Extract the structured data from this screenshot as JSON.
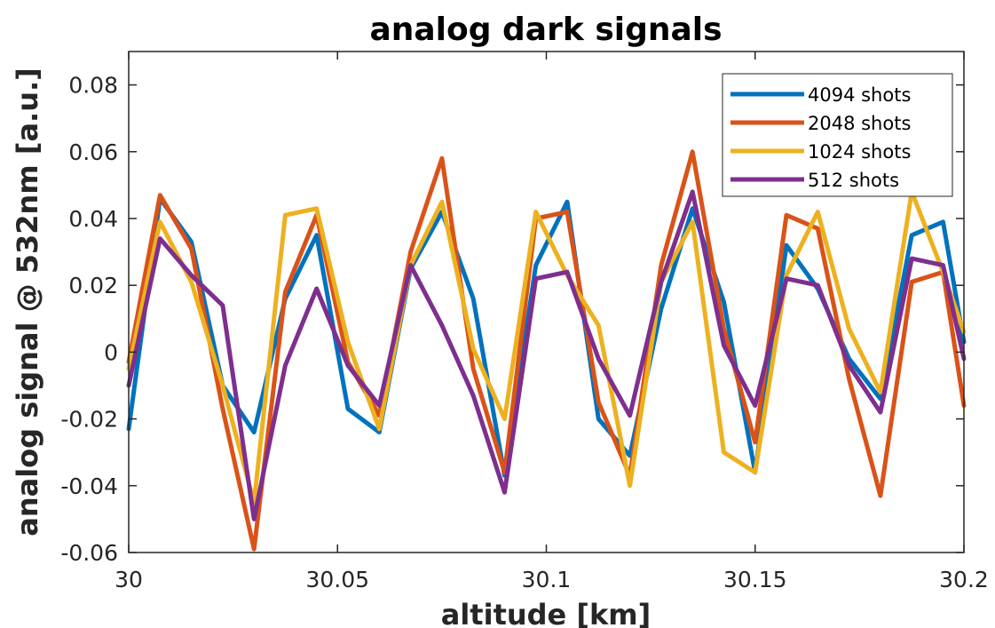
{
  "chart_data": {
    "type": "line",
    "title": "analog dark signals",
    "xlabel": "altitude [km]",
    "ylabel": "analog signal @ 532nm [a.u.]",
    "xlim": [
      30,
      30.2
    ],
    "ylim": [
      -0.06,
      0.09
    ],
    "xticks": [
      30,
      30.05,
      30.1,
      30.15,
      30.2
    ],
    "xtick_labels": [
      "30",
      "30.05",
      "30.1",
      "30.15",
      "30.2"
    ],
    "yticks": [
      -0.06,
      -0.04,
      -0.02,
      0,
      0.02,
      0.04,
      0.06,
      0.08
    ],
    "ytick_labels": [
      "-0.06",
      "-0.04",
      "-0.02",
      "0",
      "0.02",
      "0.04",
      "0.06",
      "0.08"
    ],
    "grid": false,
    "legend_position": "top-right",
    "x": [
      30.0,
      30.0075,
      30.015,
      30.0225,
      30.03,
      30.0375,
      30.045,
      30.0525,
      30.06,
      30.0675,
      30.075,
      30.0825,
      30.09,
      30.0975,
      30.105,
      30.1125,
      30.12,
      30.1275,
      30.135,
      30.1425,
      30.15,
      30.1575,
      30.165,
      30.1725,
      30.18,
      30.1875,
      30.195,
      30.2
    ],
    "series": [
      {
        "name": "4094 shots",
        "color": "#0072BD",
        "values": [
          -0.023,
          0.046,
          0.033,
          -0.01,
          -0.024,
          0.016,
          0.035,
          -0.017,
          -0.024,
          0.025,
          0.042,
          0.016,
          -0.037,
          0.026,
          0.045,
          -0.02,
          -0.031,
          0.013,
          0.043,
          0.015,
          -0.036,
          0.032,
          0.019,
          -0.002,
          -0.014,
          0.035,
          0.039,
          0.003
        ]
      },
      {
        "name": "2048 shots",
        "color": "#D95319",
        "values": [
          -0.003,
          0.047,
          0.031,
          -0.017,
          -0.059,
          0.018,
          0.041,
          -0.003,
          -0.019,
          0.03,
          0.058,
          -0.005,
          -0.036,
          0.04,
          0.042,
          -0.015,
          -0.037,
          0.026,
          0.06,
          0.007,
          -0.027,
          0.041,
          0.037,
          -0.008,
          -0.043,
          0.021,
          0.024,
          -0.016
        ]
      },
      {
        "name": "1024 shots",
        "color": "#EDB120",
        "values": [
          -0.005,
          0.039,
          0.021,
          -0.01,
          -0.045,
          0.041,
          0.043,
          0.003,
          -0.023,
          0.026,
          0.045,
          0.001,
          -0.02,
          0.042,
          0.023,
          0.008,
          -0.04,
          0.021,
          0.039,
          -0.03,
          -0.036,
          0.023,
          0.042,
          0.007,
          -0.012,
          0.048,
          0.024,
          0.006
        ]
      },
      {
        "name": "512 shots",
        "color": "#7E2F8E",
        "values": [
          -0.01,
          0.034,
          0.023,
          0.014,
          -0.05,
          -0.004,
          0.019,
          -0.004,
          -0.016,
          0.026,
          0.008,
          -0.013,
          -0.042,
          0.022,
          0.024,
          -0.002,
          -0.019,
          0.021,
          0.048,
          0.002,
          -0.016,
          0.022,
          0.02,
          -0.004,
          -0.018,
          0.028,
          0.026,
          -0.002
        ]
      }
    ]
  }
}
